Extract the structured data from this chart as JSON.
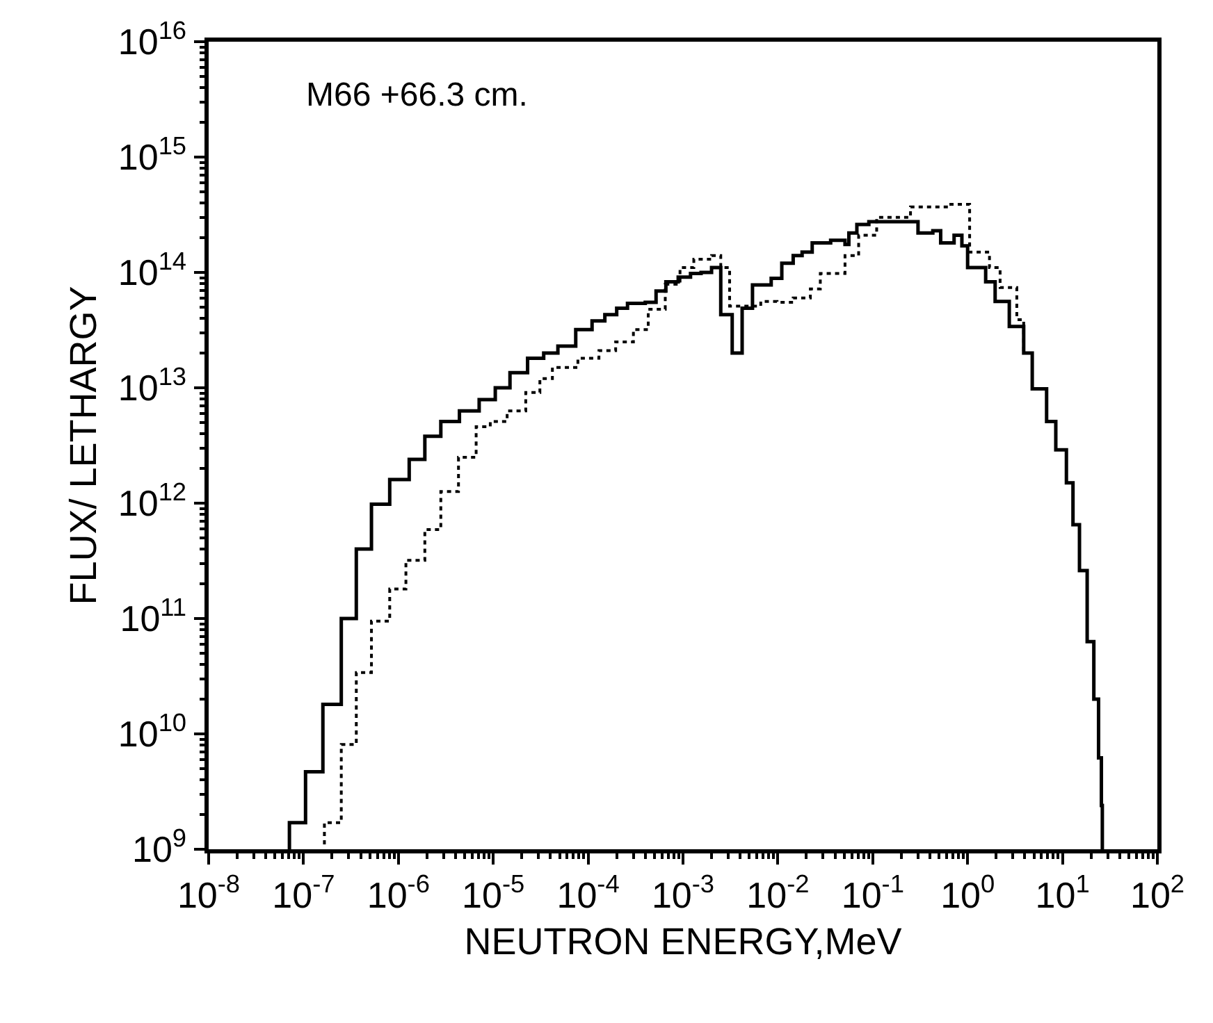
{
  "chart_data": {
    "type": "step",
    "xlabel": "NEUTRON ENERGY,MeV",
    "ylabel": "FLUX/ LETHARGY",
    "annotations": [
      "M66 +66.3 cm."
    ],
    "log": "xy",
    "marker": "none",
    "xlim": [
      1e-08,
      100
    ],
    "ylim": [
      1000000000.0,
      1e+16
    ],
    "xticks": [
      {
        "value": 1e-08,
        "label": "10$^{-8}$"
      },
      {
        "value": 1e-07,
        "label": "10$^{-7}$"
      },
      {
        "value": 1e-06,
        "label": "10$^{-6}$"
      },
      {
        "value": 1e-05,
        "label": "10$^{-5}$"
      },
      {
        "value": 0.0001,
        "label": "10$^{-4}$"
      },
      {
        "value": 0.001,
        "label": "10$^{-3}$"
      },
      {
        "value": 0.01,
        "label": "10$^{-2}$"
      },
      {
        "value": 0.1,
        "label": "10$^{-1}$"
      },
      {
        "value": 1,
        "label": "10$^{0}$"
      },
      {
        "value": 10,
        "label": "10$^{1}$"
      },
      {
        "value": 100,
        "label": "10$^{2}$"
      }
    ],
    "yticks": [
      {
        "value": 1000000000.0,
        "label": "10$^{9}$"
      },
      {
        "value": 10000000000.0,
        "label": "10$^{10}$"
      },
      {
        "value": 100000000000.0,
        "label": "10$^{11}$"
      },
      {
        "value": 1000000000000.0,
        "label": "10$^{12}$"
      },
      {
        "value": 10000000000000.0,
        "label": "10$^{13}$"
      },
      {
        "value": 100000000000000.0,
        "label": "10$^{14}$"
      },
      {
        "value": 1000000000000000.0,
        "label": "10$^{15}$"
      },
      {
        "value": 1e+16,
        "label": "10$^{16}$"
      }
    ],
    "series": [
      {
        "color": "#000000",
        "line_style": "solid",
        "x": [
          7.1e-08,
          7.1e-08,
          1.05e-07,
          1.6e-07,
          2.5e-07,
          3.6e-07,
          5.2e-07,
          8.1e-07,
          1.3e-06,
          1.9e-06,
          2.8e-06,
          4.4e-06,
          7.1e-06,
          1.05e-05,
          1.5e-05,
          2.3e-05,
          3.4e-05,
          4.8e-05,
          7.4e-05,
          0.00011,
          0.00015,
          0.0002,
          0.00026,
          0.0004,
          0.00052,
          0.00066,
          0.00089,
          0.0012,
          0.00155,
          0.002,
          0.0025,
          0.0033,
          0.0042,
          0.0054,
          0.0085,
          0.011,
          0.0145,
          0.018,
          0.023,
          0.036,
          0.051,
          0.056,
          0.068,
          0.091,
          0.2,
          0.3,
          0.43,
          0.52,
          0.72,
          0.87,
          1.0,
          1.55,
          1.95,
          2.75,
          3.9,
          4.8,
          6.8,
          8.5,
          11,
          12.9,
          15.1,
          18.2,
          21.4,
          24,
          25.7,
          26.3
        ],
        "values": [
          1000000000.0,
          1700000000.0,
          4700000000.0,
          18000000000.0,
          100000000000.0,
          400000000000.0,
          980000000000.0,
          1600000000000.0,
          2400000000000.0,
          3800000000000.0,
          5100000000000.0,
          6300000000000.0,
          7900000000000.0,
          10000000000000.0,
          13500000000000.0,
          18000000000000.0,
          20000000000000.0,
          23000000000000.0,
          32000000000000.0,
          38000000000000.0,
          43000000000000.0,
          49000000000000.0,
          54000000000000.0,
          55000000000000.0,
          69000000000000.0,
          83000000000000.0,
          91000000000000.0,
          98000000000000.0,
          100000000000000.0,
          110000000000000.0,
          43000000000000.0,
          20000000000000.0,
          49000000000000.0,
          78000000000000.0,
          89000000000000.0,
          120000000000000.0,
          140000000000000.0,
          150000000000000.0,
          180000000000000.0,
          190000000000000.0,
          175000000000000.0,
          220000000000000.0,
          260000000000000.0,
          275000000000000.0,
          275000000000000.0,
          220000000000000.0,
          230000000000000.0,
          180000000000000.0,
          210000000000000.0,
          170000000000000.0,
          110000000000000.0,
          83000000000000.0,
          56000000000000.0,
          34000000000000.0,
          20000000000000.0,
          9800000000000.0,
          5100000000000.0,
          2900000000000.0,
          1500000000000.0,
          650000000000.0,
          260000000000.0,
          63000000000.0,
          20000000000.0,
          6200000000.0,
          2400000000.0,
          1000000000.0
        ]
      },
      {
        "color": "#000000",
        "line_style": "dotted",
        "x": [
          1.66e-07,
          1.66e-07,
          2.5e-07,
          3.6e-07,
          5.2e-07,
          8.1e-07,
          1.2e-06,
          1.9e-06,
          2.8e-06,
          4.3e-06,
          6.6e-06,
          9.3e-06,
          1.4e-05,
          2.2e-05,
          3.1e-05,
          4.2e-05,
          7.8e-05,
          0.00013,
          0.000195,
          0.0003,
          0.00043,
          0.00065,
          0.00093,
          0.0013,
          0.002,
          0.0025,
          0.0031,
          0.0066,
          0.0098,
          0.0145,
          0.022,
          0.028,
          0.051,
          0.071,
          0.11,
          0.25,
          0.62,
          1.05,
          1.7,
          2.2,
          3.3,
          3.9
        ],
        "values": [
          1100000000.0,
          1700000000.0,
          8100000000.0,
          34000000000.0,
          95000000000.0,
          180000000000.0,
          320000000000.0,
          590000000000.0,
          1260000000000.0,
          2500000000000.0,
          4600000000000.0,
          5100000000000.0,
          6300000000000.0,
          9100000000000.0,
          12000000000000.0,
          15000000000000.0,
          18000000000000.0,
          21000000000000.0,
          25000000000000.0,
          32000000000000.0,
          48000000000000.0,
          79000000000000.0,
          110000000000000.0,
          130000000000000.0,
          140000000000000.0,
          110000000000000.0,
          51000000000000.0,
          56000000000000.0,
          55000000000000.0,
          60000000000000.0,
          72000000000000.0,
          98000000000000.0,
          140000000000000.0,
          210000000000000.0,
          300000000000000.0,
          370000000000000.0,
          390000000000000.0,
          150000000000000.0,
          110000000000000.0,
          74000000000000.0,
          39000000000000.0,
          20000000000000.0
        ]
      }
    ]
  }
}
